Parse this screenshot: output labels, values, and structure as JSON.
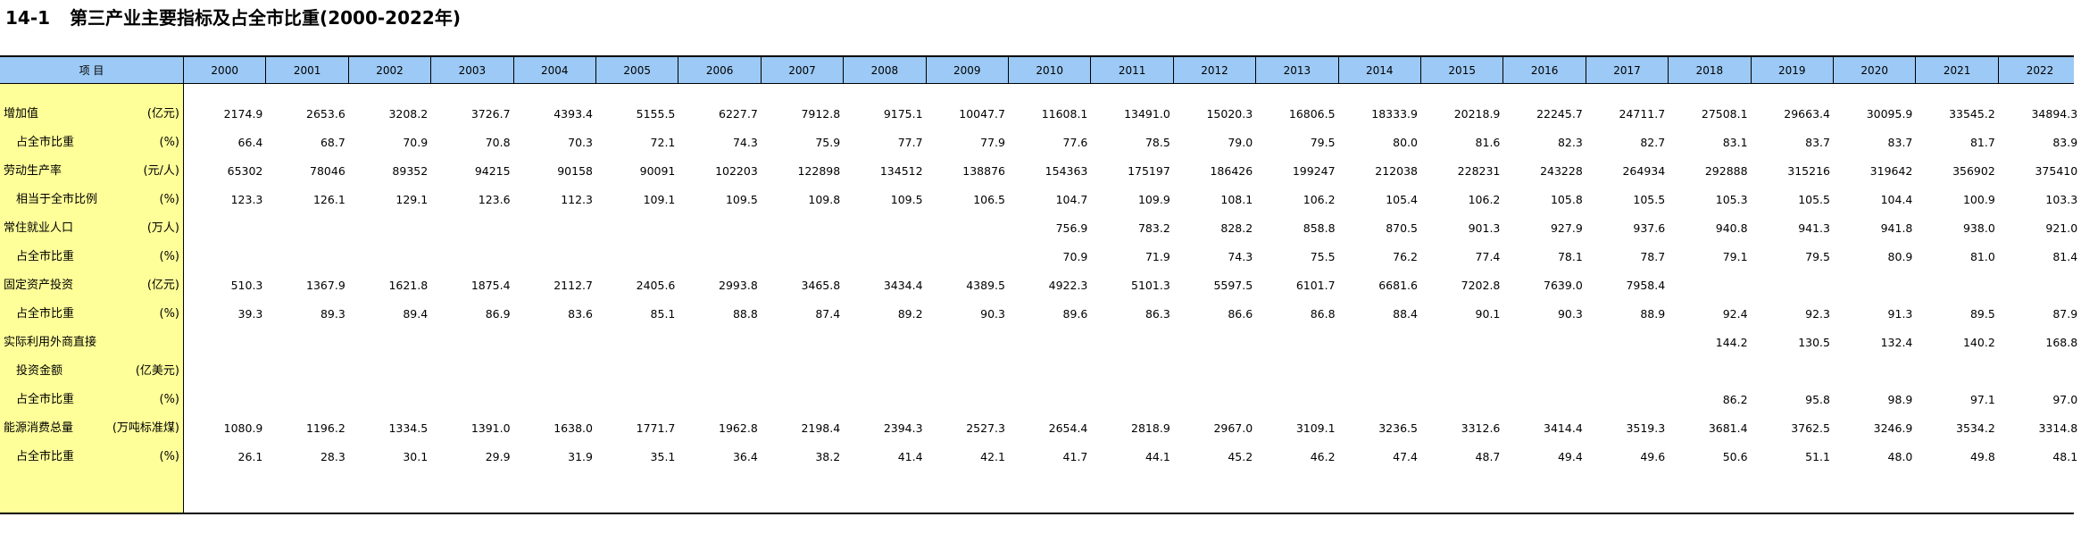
{
  "title": {
    "num": "14-1",
    "text": "第三产业主要指标及占全市比重(2000-2022年)"
  },
  "header": {
    "item_label": "项  目",
    "years": [
      "2000",
      "2001",
      "2002",
      "2003",
      "2004",
      "2005",
      "2006",
      "2007",
      "2008",
      "2009",
      "2010",
      "2011",
      "2012",
      "2013",
      "2014",
      "2015",
      "2016",
      "2017",
      "2018",
      "2019",
      "2020",
      "2021",
      "2022"
    ]
  },
  "rows": [
    {
      "label": "增加值",
      "indent": false,
      "unit": "(亿元)",
      "values": [
        "2174.9",
        "2653.6",
        "3208.2",
        "3726.7",
        "4393.4",
        "5155.5",
        "6227.7",
        "7912.8",
        "9175.1",
        "10047.7",
        "11608.1",
        "13491.0",
        "15020.3",
        "16806.5",
        "18333.9",
        "20218.9",
        "22245.7",
        "24711.7",
        "27508.1",
        "29663.4",
        "30095.9",
        "33545.2",
        "34894.3"
      ]
    },
    {
      "label": "占全市比重",
      "indent": true,
      "unit": "(%)",
      "values": [
        "66.4",
        "68.7",
        "70.9",
        "70.8",
        "70.3",
        "72.1",
        "74.3",
        "75.9",
        "77.7",
        "77.9",
        "77.6",
        "78.5",
        "79.0",
        "79.5",
        "80.0",
        "81.6",
        "82.3",
        "82.7",
        "83.1",
        "83.7",
        "83.7",
        "81.7",
        "83.9"
      ]
    },
    {
      "label": "劳动生产率",
      "indent": false,
      "unit": "(元/人)",
      "values": [
        "65302",
        "78046",
        "89352",
        "94215",
        "90158",
        "90091",
        "102203",
        "122898",
        "134512",
        "138876",
        "154363",
        "175197",
        "186426",
        "199247",
        "212038",
        "228231",
        "243228",
        "264934",
        "292888",
        "315216",
        "319642",
        "356902",
        "375410"
      ]
    },
    {
      "label": "相当于全市比例",
      "indent": true,
      "unit": "(%)",
      "values": [
        "123.3",
        "126.1",
        "129.1",
        "123.6",
        "112.3",
        "109.1",
        "109.5",
        "109.8",
        "109.5",
        "106.5",
        "104.7",
        "109.9",
        "108.1",
        "106.2",
        "105.4",
        "106.2",
        "105.8",
        "105.5",
        "105.3",
        "105.5",
        "104.4",
        "100.9",
        "103.3"
      ]
    },
    {
      "label": "常住就业人口",
      "indent": false,
      "unit": "(万人)",
      "values": [
        "",
        "",
        "",
        "",
        "",
        "",
        "",
        "",
        "",
        "",
        "756.9",
        "783.2",
        "828.2",
        "858.8",
        "870.5",
        "901.3",
        "927.9",
        "937.6",
        "940.8",
        "941.3",
        "941.8",
        "938.0",
        "921.0"
      ]
    },
    {
      "label": "占全市比重",
      "indent": true,
      "unit": "(%)",
      "values": [
        "",
        "",
        "",
        "",
        "",
        "",
        "",
        "",
        "",
        "",
        "70.9",
        "71.9",
        "74.3",
        "75.5",
        "76.2",
        "77.4",
        "78.1",
        "78.7",
        "79.1",
        "79.5",
        "80.9",
        "81.0",
        "81.4"
      ]
    },
    {
      "label": "固定资产投资",
      "indent": false,
      "unit": "(亿元)",
      "values": [
        "510.3",
        "1367.9",
        "1621.8",
        "1875.4",
        "2112.7",
        "2405.6",
        "2993.8",
        "3465.8",
        "3434.4",
        "4389.5",
        "4922.3",
        "5101.3",
        "5597.5",
        "6101.7",
        "6681.6",
        "7202.8",
        "7639.0",
        "7958.4",
        "",
        "",
        "",
        "",
        ""
      ]
    },
    {
      "label": "占全市比重",
      "indent": true,
      "unit": "(%)",
      "values": [
        "39.3",
        "89.3",
        "89.4",
        "86.9",
        "83.6",
        "85.1",
        "88.8",
        "87.4",
        "89.2",
        "90.3",
        "89.6",
        "86.3",
        "86.6",
        "86.8",
        "88.4",
        "90.1",
        "90.3",
        "88.9",
        "92.4",
        "92.3",
        "91.3",
        "89.5",
        "87.9"
      ]
    },
    {
      "label": "实际利用外商直接",
      "indent": false,
      "unit": "",
      "values": [
        "",
        "",
        "",
        "",
        "",
        "",
        "",
        "",
        "",
        "",
        "",
        "",
        "",
        "",
        "",
        "",
        "",
        "",
        "144.2",
        "130.5",
        "132.4",
        "140.2",
        "168.8"
      ]
    },
    {
      "label": "投资金额",
      "indent": true,
      "unit": "(亿美元)",
      "values": [
        "",
        "",
        "",
        "",
        "",
        "",
        "",
        "",
        "",
        "",
        "",
        "",
        "",
        "",
        "",
        "",
        "",
        "",
        "",
        "",
        "",
        "",
        ""
      ]
    },
    {
      "label": "占全市比重",
      "indent": true,
      "unit": "(%)",
      "values": [
        "",
        "",
        "",
        "",
        "",
        "",
        "",
        "",
        "",
        "",
        "",
        "",
        "",
        "",
        "",
        "",
        "",
        "",
        "86.2",
        "95.8",
        "98.9",
        "97.1",
        "97.0"
      ]
    },
    {
      "label": "能源消费总量",
      "indent": false,
      "unit": "(万吨标准煤)",
      "values": [
        "1080.9",
        "1196.2",
        "1334.5",
        "1391.0",
        "1638.0",
        "1771.7",
        "1962.8",
        "2198.4",
        "2394.3",
        "2527.3",
        "2654.4",
        "2818.9",
        "2967.0",
        "3109.1",
        "3236.5",
        "3312.6",
        "3414.4",
        "3519.3",
        "3681.4",
        "3762.5",
        "3246.9",
        "3534.2",
        "3314.8"
      ]
    },
    {
      "label": "占全市比重",
      "indent": true,
      "unit": "(%)",
      "values": [
        "26.1",
        "28.3",
        "30.1",
        "29.9",
        "31.9",
        "35.1",
        "36.4",
        "38.2",
        "41.4",
        "42.1",
        "41.7",
        "44.1",
        "45.2",
        "46.2",
        "47.4",
        "48.7",
        "49.4",
        "49.6",
        "50.6",
        "51.1",
        "48.0",
        "49.8",
        "48.1"
      ]
    }
  ]
}
